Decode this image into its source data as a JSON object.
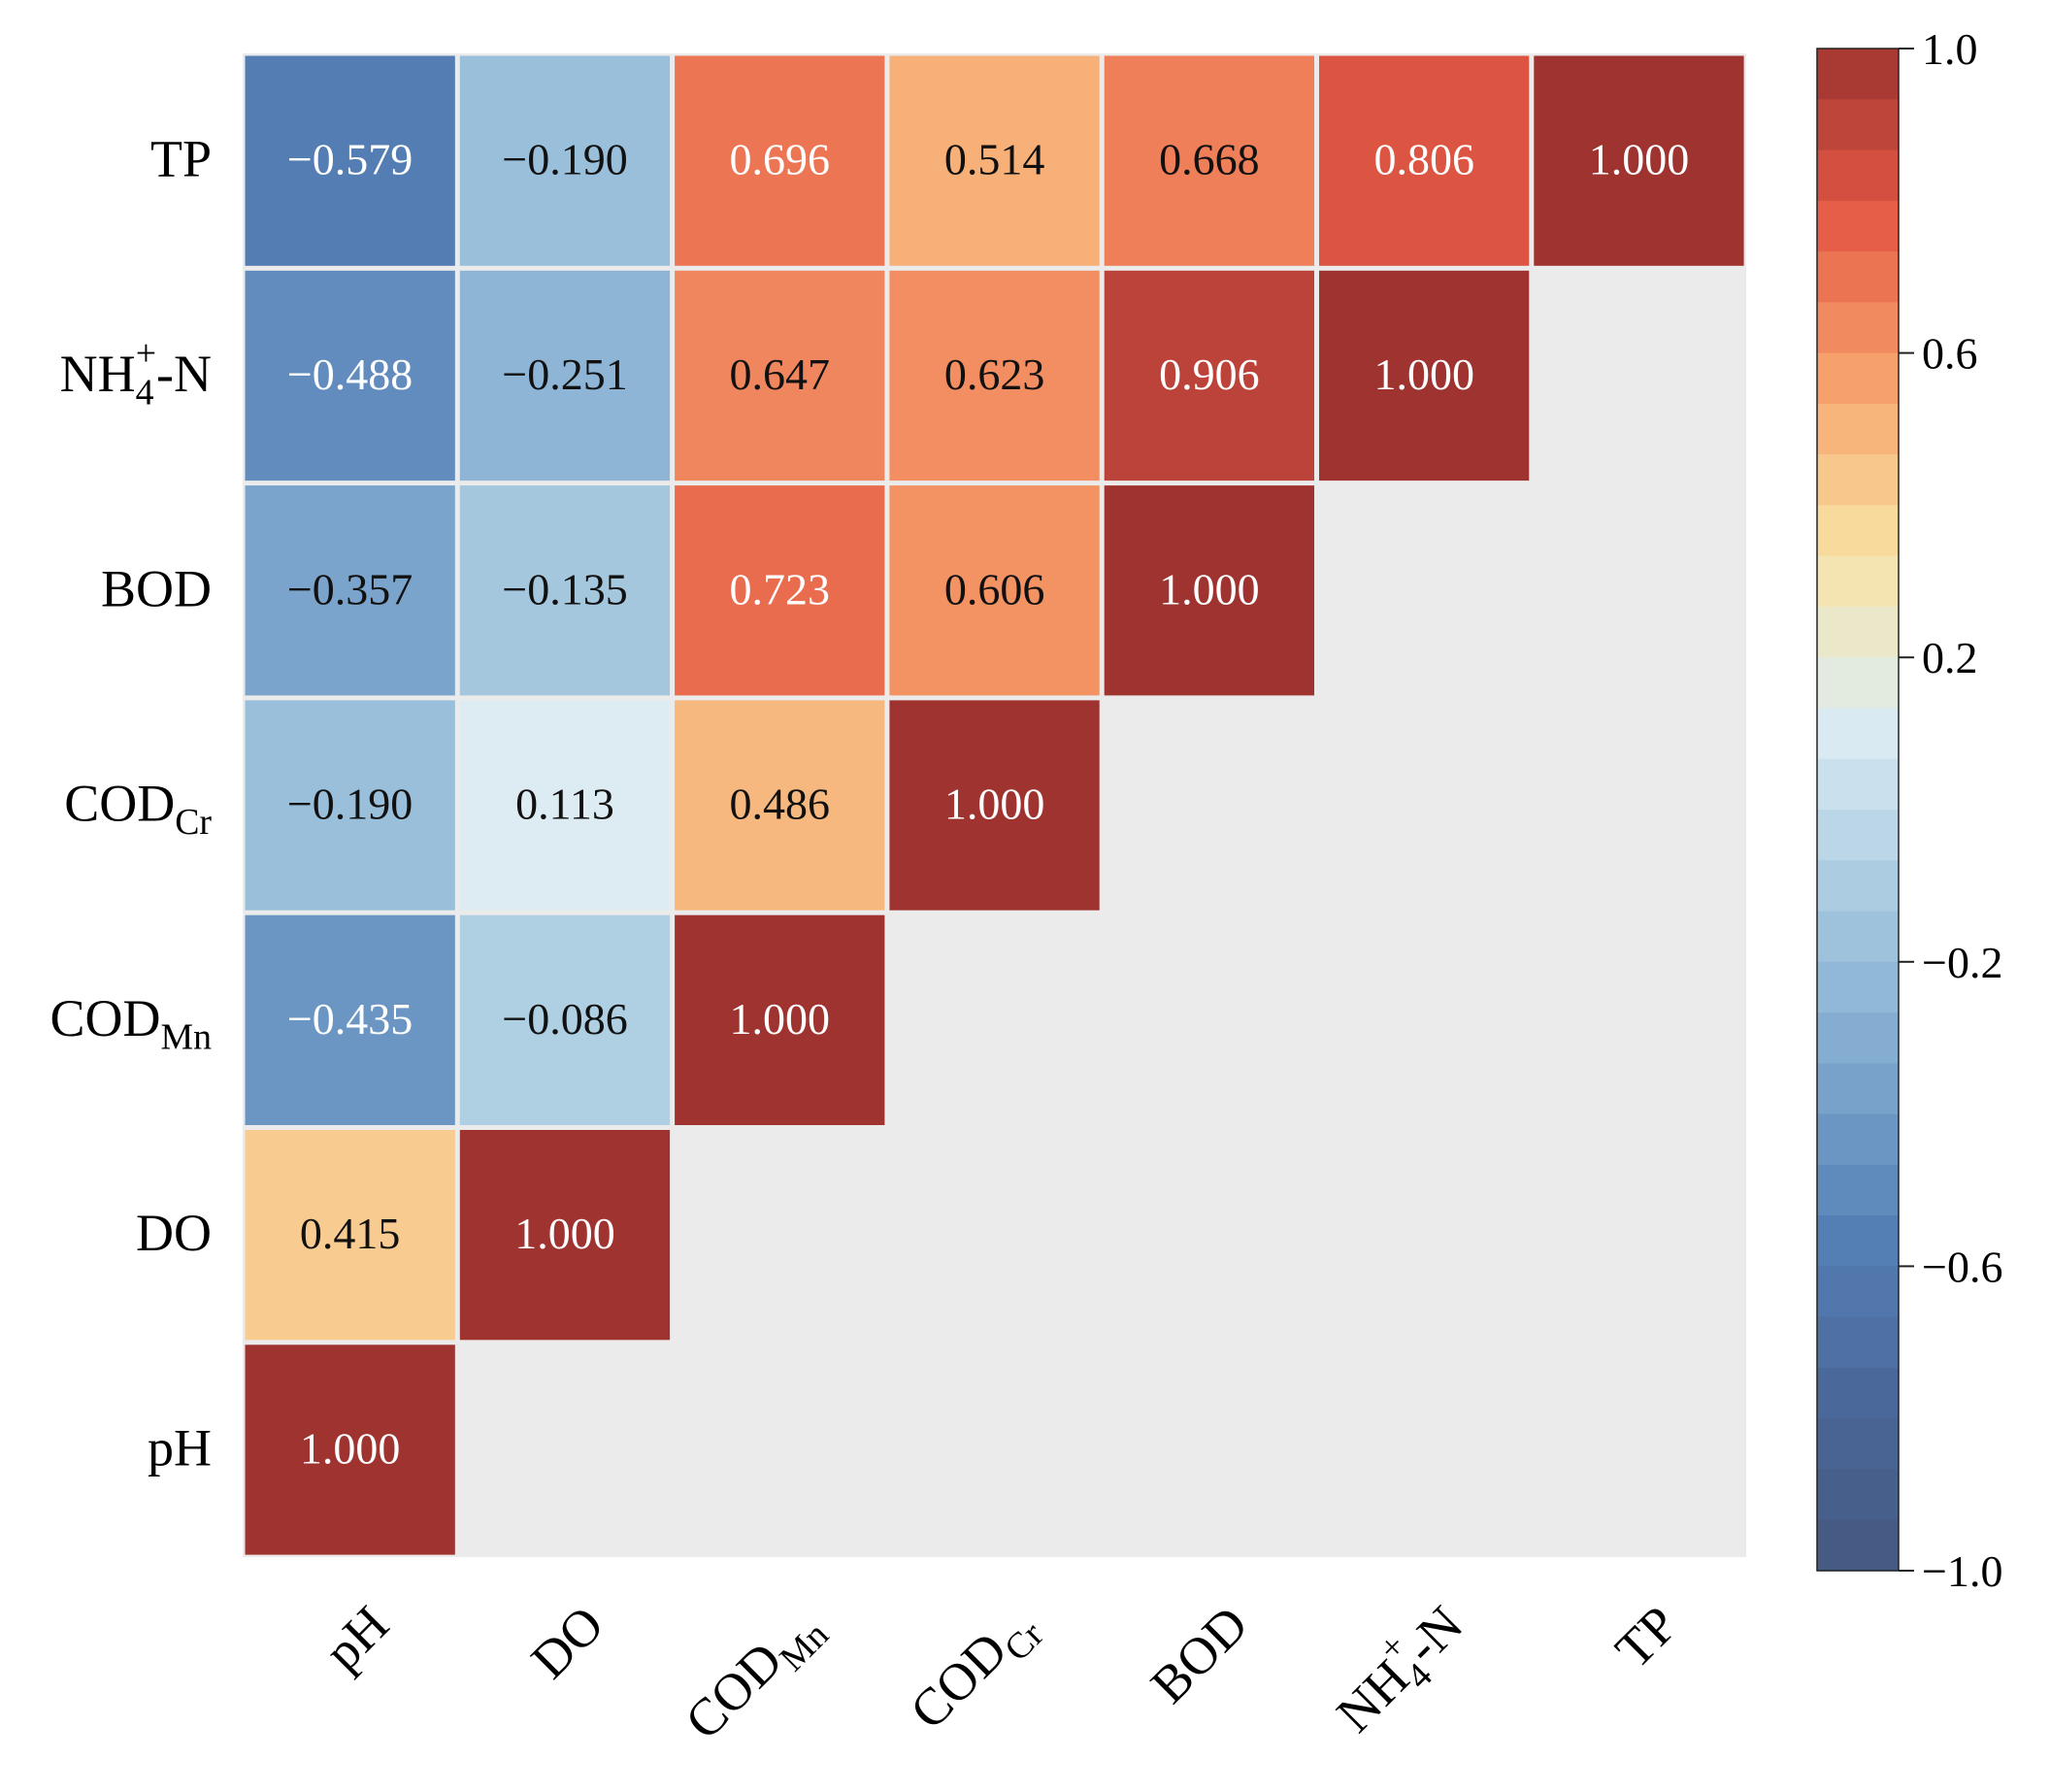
{
  "chart_data": {
    "type": "heatmap",
    "title": "",
    "variables": [
      {
        "id": "pH",
        "base": "pH",
        "sub": "",
        "sup": ""
      },
      {
        "id": "DO",
        "base": "DO",
        "sub": "",
        "sup": ""
      },
      {
        "id": "COD_Mn",
        "base": "COD",
        "sub": "Mn",
        "sup": ""
      },
      {
        "id": "COD_Cr",
        "base": "COD",
        "sub": "Cr",
        "sup": ""
      },
      {
        "id": "BOD",
        "base": "BOD",
        "sub": "",
        "sup": ""
      },
      {
        "id": "NH4-N",
        "base": "NH",
        "sub": "4",
        "sup": "+",
        "suffix": "-N"
      },
      {
        "id": "TP",
        "base": "TP",
        "sub": "",
        "sup": ""
      }
    ],
    "cells": [
      {
        "row": "TP",
        "col": "pH",
        "value": -0.579,
        "label": "−0.579"
      },
      {
        "row": "TP",
        "col": "DO",
        "value": -0.19,
        "label": "−0.190"
      },
      {
        "row": "TP",
        "col": "COD_Mn",
        "value": 0.696,
        "label": "0.696"
      },
      {
        "row": "TP",
        "col": "COD_Cr",
        "value": 0.514,
        "label": "0.514"
      },
      {
        "row": "TP",
        "col": "BOD",
        "value": 0.668,
        "label": "0.668"
      },
      {
        "row": "TP",
        "col": "NH4-N",
        "value": 0.806,
        "label": "0.806"
      },
      {
        "row": "TP",
        "col": "TP",
        "value": 1.0,
        "label": "1.000"
      },
      {
        "row": "NH4-N",
        "col": "pH",
        "value": -0.488,
        "label": "−0.488"
      },
      {
        "row": "NH4-N",
        "col": "DO",
        "value": -0.251,
        "label": "−0.251"
      },
      {
        "row": "NH4-N",
        "col": "COD_Mn",
        "value": 0.647,
        "label": "0.647"
      },
      {
        "row": "NH4-N",
        "col": "COD_Cr",
        "value": 0.623,
        "label": "0.623"
      },
      {
        "row": "NH4-N",
        "col": "BOD",
        "value": 0.906,
        "label": "0.906"
      },
      {
        "row": "NH4-N",
        "col": "NH4-N",
        "value": 1.0,
        "label": "1.000"
      },
      {
        "row": "BOD",
        "col": "pH",
        "value": -0.357,
        "label": "−0.357"
      },
      {
        "row": "BOD",
        "col": "DO",
        "value": -0.135,
        "label": "−0.135"
      },
      {
        "row": "BOD",
        "col": "COD_Mn",
        "value": 0.723,
        "label": "0.723"
      },
      {
        "row": "BOD",
        "col": "COD_Cr",
        "value": 0.606,
        "label": "0.606"
      },
      {
        "row": "BOD",
        "col": "BOD",
        "value": 1.0,
        "label": "1.000"
      },
      {
        "row": "COD_Cr",
        "col": "pH",
        "value": -0.19,
        "label": "−0.190"
      },
      {
        "row": "COD_Cr",
        "col": "DO",
        "value": 0.113,
        "label": "0.113"
      },
      {
        "row": "COD_Cr",
        "col": "COD_Mn",
        "value": 0.486,
        "label": "0.486"
      },
      {
        "row": "COD_Cr",
        "col": "COD_Cr",
        "value": 1.0,
        "label": "1.000"
      },
      {
        "row": "COD_Mn",
        "col": "pH",
        "value": -0.435,
        "label": "−0.435"
      },
      {
        "row": "COD_Mn",
        "col": "DO",
        "value": -0.086,
        "label": "−0.086"
      },
      {
        "row": "COD_Mn",
        "col": "COD_Mn",
        "value": 1.0,
        "label": "1.000"
      },
      {
        "row": "DO",
        "col": "pH",
        "value": 0.415,
        "label": "0.415"
      },
      {
        "row": "DO",
        "col": "DO",
        "value": 1.0,
        "label": "1.000"
      },
      {
        "row": "pH",
        "col": "pH",
        "value": 1.0,
        "label": "1.000"
      }
    ],
    "colorbar": {
      "range": [
        -1.0,
        1.0
      ],
      "ticks": [
        {
          "value": 1.0,
          "label": "1.0"
        },
        {
          "value": 0.6,
          "label": "0.6"
        },
        {
          "value": 0.2,
          "label": "0.2"
        },
        {
          "value": -0.2,
          "label": "−0.2"
        },
        {
          "value": -0.6,
          "label": "−0.6"
        },
        {
          "value": -1.0,
          "label": "−1.0"
        }
      ],
      "palette": [
        "#44597f",
        "#4a6799",
        "#5480b6",
        "#7ea8ce",
        "#a9cbe0",
        "#dcecf3",
        "#f8e3a6",
        "#f7a46d",
        "#e55a45",
        "#9e3330"
      ],
      "legend_position": "right"
    },
    "background_color": "#ebebeb",
    "grid": false
  }
}
